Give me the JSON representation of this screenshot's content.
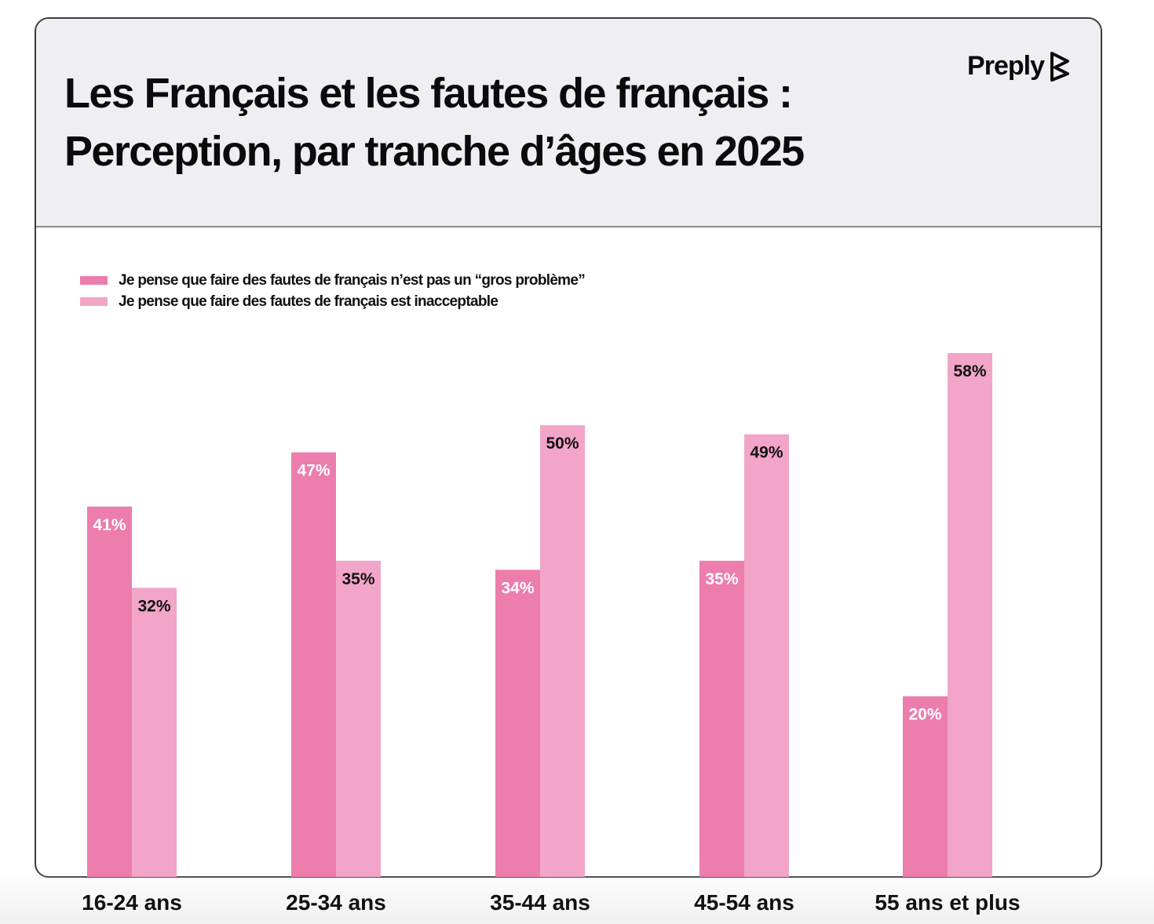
{
  "brand": {
    "name": "Preply",
    "icon": "preply-logo-icon"
  },
  "header": {
    "title_line1": "Les Français et les fautes de français :",
    "title_line2": "Perception, par tranche d’âges en 2025"
  },
  "colors": {
    "series1": "#ec7dad",
    "series2": "#f2a5c8",
    "header_bg": "#efeff3"
  },
  "chart_data": {
    "type": "bar",
    "title": "Les Français et les fautes de français : Perception, par tranche d’âges en 2025",
    "categories": [
      "16-24 ans",
      "25-34 ans",
      "35-44 ans",
      "45-54 ans",
      "55 ans et plus"
    ],
    "series": [
      {
        "name": "Je pense que faire des fautes de français n’est pas un “gros problème”",
        "values": [
          41,
          47,
          34,
          35,
          20
        ],
        "labels": [
          "41%",
          "47%",
          "34%",
          "35%",
          "20%"
        ],
        "color": "#ec7dad",
        "label_color": "#ffffff"
      },
      {
        "name": "Je pense que faire des fautes de français est inacceptable",
        "values": [
          32,
          35,
          50,
          49,
          58
        ],
        "labels": [
          "32%",
          "35%",
          "50%",
          "49%",
          "58%"
        ],
        "color": "#f2a5c8",
        "label_color": "#111111"
      }
    ],
    "ylim": [
      0,
      58
    ],
    "grid": false,
    "legend": "top-left",
    "xlabel": "",
    "ylabel": ""
  }
}
